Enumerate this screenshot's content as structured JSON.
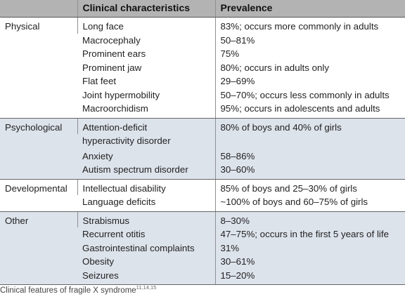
{
  "header": {
    "col1": "",
    "col2": "Clinical characteristics",
    "col3": "Prevalence"
  },
  "groups": [
    {
      "category": "Physical",
      "rows": [
        {
          "characteristic": "Long face",
          "prevalence": "83%; occurs more commonly in adults"
        },
        {
          "characteristic": "Macrocephaly",
          "prevalence": "50–81%"
        },
        {
          "characteristic": "Prominent ears",
          "prevalence": "75%"
        },
        {
          "characteristic": "Prominent jaw",
          "prevalence": "80%; occurs in adults only"
        },
        {
          "characteristic": "Flat feet",
          "prevalence": "29–69%"
        },
        {
          "characteristic": "Joint hypermobility",
          "prevalence": "50–70%; occurs less commonly in adults"
        },
        {
          "characteristic": "Macroorchidism",
          "prevalence": "95%; occurs in adolescents and adults"
        }
      ]
    },
    {
      "category": "Psychological",
      "rows": [
        {
          "characteristic": "Attention-deficit",
          "prevalence": "80% of boys and 40% of girls"
        },
        {
          "characteristic": "hyperactivity disorder",
          "prevalence": ""
        },
        {
          "characteristic": "Anxiety",
          "prevalence": "58–86%"
        },
        {
          "characteristic": "Autism spectrum disorder",
          "prevalence": "30–60%"
        }
      ]
    },
    {
      "category": "Developmental",
      "rows": [
        {
          "characteristic": "Intellectual disability",
          "prevalence": "85% of boys and 25–30% of girls"
        },
        {
          "characteristic": "Language deficits",
          "prevalence": "~100% of boys and 60–75% of girls"
        }
      ]
    },
    {
      "category": "Other",
      "rows": [
        {
          "characteristic": "Strabismus",
          "prevalence": "8–30%"
        },
        {
          "characteristic": "Recurrent otitis",
          "prevalence": "47–75%; occurs in the first 5 years of life"
        },
        {
          "characteristic": "Gastrointestinal complaints",
          "prevalence": "31%"
        },
        {
          "characteristic": "Obesity",
          "prevalence": "30–61%"
        },
        {
          "characteristic": "Seizures",
          "prevalence": "15–20%"
        }
      ]
    }
  ],
  "caption": {
    "text": "Clinical features of fragile X syndrome",
    "refs": "11,14,15"
  }
}
